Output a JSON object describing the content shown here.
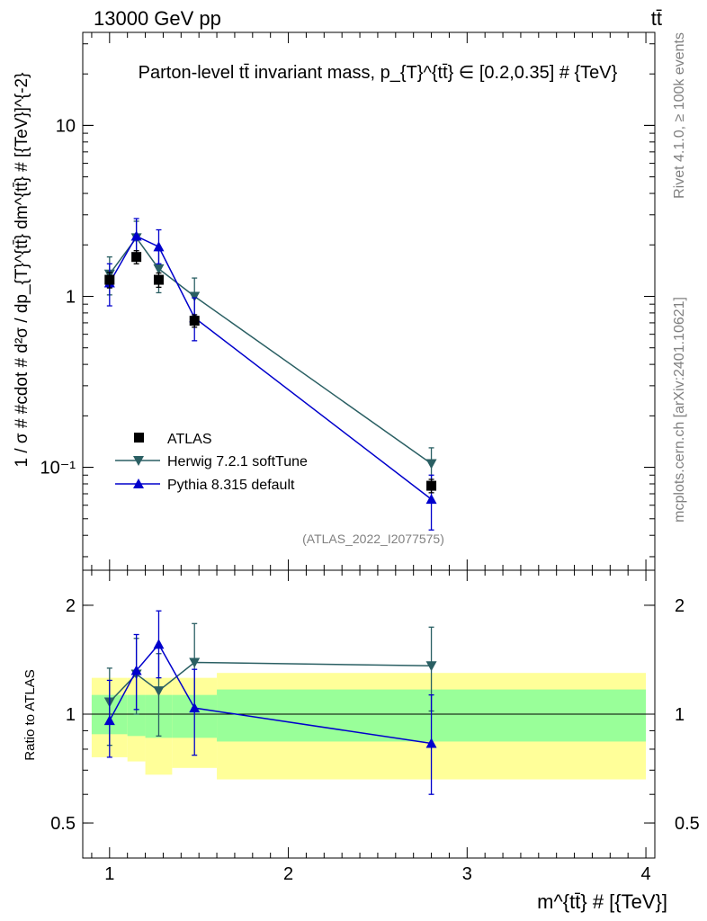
{
  "header": {
    "left": "13000 GeV pp",
    "right": "tt̄"
  },
  "side_labels": {
    "rivet": "Rivet 4.1.0, ≥ 100k events",
    "mcplots": "mcplots.cern.ch [arXiv:2401.10621]"
  },
  "chart_data": [
    {
      "type": "scatter",
      "panel": "main",
      "title": "Parton-level tt̄ invariant mass, p_{T}^{tt̄} ∈ [0.2,0.35] # {TeV}",
      "xlabel": "m^{tt̄} # [{TeV}]",
      "ylabel": "1 / σ # #cdot # d²σ / dp_{T}^{tt̄} dm^{tt̄} # [{TeV}]^{-2}",
      "yscale": "log",
      "xlim": [
        0.85,
        4.05
      ],
      "ylim": [
        0.025,
        35
      ],
      "yticks": [
        {
          "v": 0.1,
          "label": "10⁻¹"
        },
        {
          "v": 1,
          "label": "1"
        },
        {
          "v": 10,
          "label": "10"
        }
      ],
      "xticks": [
        {
          "v": 1,
          "label": "1"
        },
        {
          "v": 2,
          "label": "2"
        },
        {
          "v": 3,
          "label": "3"
        },
        {
          "v": 4,
          "label": "4"
        }
      ],
      "watermark": "(ATLAS_2022_I2077575)",
      "series": [
        {
          "name": "ATLAS",
          "marker": "square",
          "color": "#000000",
          "x": [
            1.0,
            1.15,
            1.275,
            1.475,
            2.8
          ],
          "y": [
            1.25,
            1.7,
            1.25,
            0.72,
            0.078
          ],
          "yerr_low": [
            1.12,
            1.55,
            1.13,
            0.66,
            0.071
          ],
          "yerr_high": [
            1.38,
            1.85,
            1.37,
            0.78,
            0.085
          ]
        },
        {
          "name": "Herwig 7.2.1 softTune",
          "marker": "triangle-down",
          "color": "#2a5f63",
          "x": [
            1.0,
            1.15,
            1.275,
            1.475,
            2.8
          ],
          "y": [
            1.35,
            2.2,
            1.45,
            1.0,
            0.105
          ],
          "yerr_low": [
            1.02,
            1.7,
            1.05,
            0.75,
            0.08
          ],
          "yerr_high": [
            1.7,
            2.75,
            1.85,
            1.28,
            0.13
          ]
        },
        {
          "name": "Pythia 8.315 default",
          "marker": "triangle-up",
          "color": "#0000cc",
          "x": [
            1.0,
            1.15,
            1.275,
            1.475,
            2.8
          ],
          "y": [
            1.2,
            2.25,
            1.95,
            0.75,
            0.065
          ],
          "yerr_low": [
            0.88,
            1.75,
            1.55,
            0.55,
            0.043
          ],
          "yerr_high": [
            1.55,
            2.85,
            2.45,
            0.98,
            0.09
          ]
        }
      ]
    },
    {
      "type": "scatter",
      "panel": "ratio",
      "ylabel": "Ratio to ATLAS",
      "yscale": "log",
      "xlim": [
        0.85,
        4.05
      ],
      "ylim": [
        0.4,
        2.5
      ],
      "yticks": [
        {
          "v": 0.5,
          "label": "0.5"
        },
        {
          "v": 1,
          "label": "1"
        },
        {
          "v": 2,
          "label": "2"
        }
      ],
      "bands": {
        "edges": [
          0.9,
          1.1,
          1.2,
          1.35,
          1.6,
          4.0
        ],
        "inner_low": [
          0.88,
          0.87,
          0.86,
          0.86,
          0.84
        ],
        "inner_high": [
          1.13,
          1.13,
          1.13,
          1.13,
          1.17
        ],
        "outer_low": [
          0.76,
          0.74,
          0.68,
          0.71,
          0.66
        ],
        "outer_high": [
          1.26,
          1.26,
          1.26,
          1.26,
          1.3
        ],
        "inner_color": "#99ff99",
        "outer_color": "#ffff99"
      },
      "series": [
        {
          "name": "Herwig 7.2.1 softTune",
          "color": "#2a5f63",
          "marker": "triangle-down",
          "x": [
            1.0,
            1.15,
            1.275,
            1.475,
            2.8
          ],
          "y": [
            1.08,
            1.29,
            1.16,
            1.39,
            1.36
          ],
          "yerr_low": [
            0.82,
            1.0,
            0.87,
            1.04,
            1.02
          ],
          "yerr_high": [
            1.34,
            1.62,
            1.47,
            1.78,
            1.74
          ]
        },
        {
          "name": "Pythia 8.315 default",
          "color": "#0000cc",
          "marker": "triangle-up",
          "x": [
            1.0,
            1.15,
            1.275,
            1.475,
            2.8
          ],
          "y": [
            0.96,
            1.32,
            1.56,
            1.04,
            0.83
          ],
          "yerr_low": [
            0.76,
            1.03,
            1.26,
            0.77,
            0.6
          ],
          "yerr_high": [
            1.24,
            1.66,
            1.93,
            1.33,
            1.13
          ]
        }
      ]
    }
  ]
}
